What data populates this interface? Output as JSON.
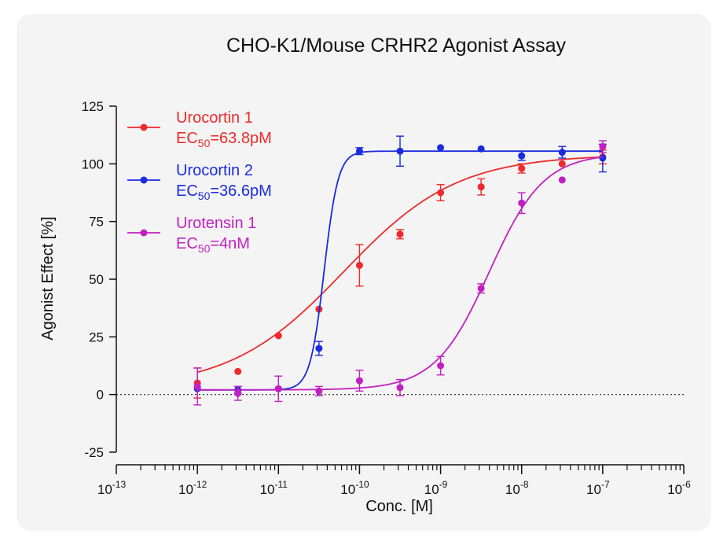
{
  "chart_data": {
    "type": "scatter",
    "title": "CHO-K1/Mouse CRHR2 Agonist Assay",
    "xlabel": "Conc. [M]",
    "ylabel": "Agonist Effect [%]",
    "x_scale": "log10",
    "xlim_exp": [
      -13,
      -6
    ],
    "ylim": [
      -25,
      125
    ],
    "y_ticks": [
      -25,
      0,
      25,
      50,
      75,
      100,
      125
    ],
    "y_tick_labels": [
      "-25",
      "0",
      "25",
      "50",
      "75",
      "100",
      "125"
    ],
    "x_tick_exponents": [
      -13,
      -12,
      -11,
      -10,
      -9,
      -8,
      -7,
      -6
    ],
    "x_tick_base": "10",
    "x_tick_exponent_labels": [
      "-13",
      "-12",
      "-11",
      "-10",
      "-9",
      "-8",
      "-7",
      "-6"
    ],
    "x_tick_labels": [
      "10^-13",
      "10^-12",
      "10^-11",
      "10^-10",
      "10^-9",
      "10^-8",
      "10^-7",
      "10^-6"
    ],
    "zero_reference_line": "dotted",
    "legend_position": "top-left",
    "series": [
      {
        "name": "Urocortin 1",
        "ec50_label": "EC50=63.8pM",
        "ec50_prefix": "EC",
        "ec50_sub": "50",
        "ec50_value": "=63.8pM",
        "color": "#ee2a2a",
        "fit": {
          "bottom": 2.5,
          "top": 104,
          "log_ec50": -10.195,
          "hill": 0.62
        },
        "points": [
          {
            "log_x": -12.0,
            "y": 5.0,
            "err": 6.5
          },
          {
            "log_x": -11.5,
            "y": 10.0,
            "err": 0
          },
          {
            "log_x": -11.0,
            "y": 25.5,
            "err": 0
          },
          {
            "log_x": -10.5,
            "y": 37.0,
            "err": 0
          },
          {
            "log_x": -10.0,
            "y": 56.0,
            "err": 9.0
          },
          {
            "log_x": -9.5,
            "y": 69.5,
            "err": 2.0
          },
          {
            "log_x": -9.0,
            "y": 87.5,
            "err": 3.5
          },
          {
            "log_x": -8.5,
            "y": 90.0,
            "err": 3.5
          },
          {
            "log_x": -8.0,
            "y": 98.0,
            "err": 2.0
          },
          {
            "log_x": -7.5,
            "y": 100.0,
            "err": 0
          },
          {
            "log_x": -7.0,
            "y": 103.0,
            "err": 3.0
          }
        ]
      },
      {
        "name": "Urocortin 2",
        "ec50_label": "EC50=36.6pM",
        "ec50_prefix": "EC",
        "ec50_sub": "50",
        "ec50_value": "=36.6pM",
        "color": "#1a2be0",
        "fit": {
          "bottom": 2.0,
          "top": 105.5,
          "log_ec50": -10.436,
          "hill": 5.0
        },
        "points": [
          {
            "log_x": -12.0,
            "y": 2.5,
            "err": 0
          },
          {
            "log_x": -11.5,
            "y": 2.0,
            "err": 1.5
          },
          {
            "log_x": -11.0,
            "y": 2.5,
            "err": 0
          },
          {
            "log_x": -10.5,
            "y": 20.0,
            "err": 3.0
          },
          {
            "log_x": -10.0,
            "y": 105.5,
            "err": 1.5
          },
          {
            "log_x": -9.5,
            "y": 105.5,
            "err": 6.5
          },
          {
            "log_x": -9.0,
            "y": 107.0,
            "err": 0
          },
          {
            "log_x": -8.5,
            "y": 106.5,
            "err": 0
          },
          {
            "log_x": -8.0,
            "y": 103.5,
            "err": 2.0
          },
          {
            "log_x": -7.5,
            "y": 105.0,
            "err": 2.5
          },
          {
            "log_x": -7.0,
            "y": 102.5,
            "err": 6.0
          }
        ]
      },
      {
        "name": "Urotensin 1",
        "ec50_label": "EC50=4nM",
        "ec50_prefix": "EC",
        "ec50_sub": "50",
        "ec50_value": "=4nM",
        "color": "#c21fc2",
        "fit": {
          "bottom": 2.0,
          "top": 104.5,
          "log_ec50": -8.398,
          "hill": 1.3
        },
        "points": [
          {
            "log_x": -12.0,
            "y": 3.5,
            "err": 8.0
          },
          {
            "log_x": -11.5,
            "y": 0.5,
            "err": 3.0
          },
          {
            "log_x": -11.0,
            "y": 2.5,
            "err": 5.5
          },
          {
            "log_x": -10.5,
            "y": 1.5,
            "err": 2.0
          },
          {
            "log_x": -10.0,
            "y": 6.0,
            "err": 4.5
          },
          {
            "log_x": -9.5,
            "y": 3.0,
            "err": 3.5
          },
          {
            "log_x": -9.0,
            "y": 12.5,
            "err": 4.0
          },
          {
            "log_x": -8.5,
            "y": 46.0,
            "err": 2.0
          },
          {
            "log_x": -8.0,
            "y": 83.0,
            "err": 4.5
          },
          {
            "log_x": -7.5,
            "y": 93.0,
            "err": 0
          },
          {
            "log_x": -7.0,
            "y": 107.5,
            "err": 2.5
          }
        ]
      }
    ]
  }
}
